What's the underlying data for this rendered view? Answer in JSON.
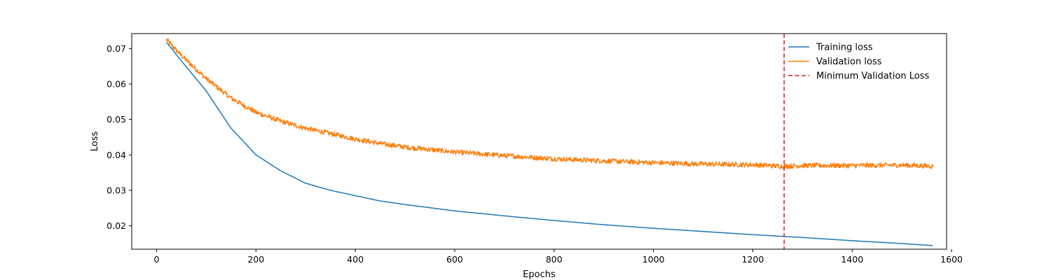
{
  "chart_data": {
    "type": "line",
    "title": "",
    "xlabel": "Epochs",
    "ylabel": "Loss",
    "xlim": [
      -50,
      1590
    ],
    "ylim": [
      0.0134,
      0.0742
    ],
    "x_ticks": [
      0,
      200,
      400,
      600,
      800,
      1000,
      1200,
      1400,
      1600
    ],
    "y_ticks": [
      0.02,
      0.03,
      0.04,
      0.05,
      0.06,
      0.07
    ],
    "grid": false,
    "legend_position": "top-right",
    "series": [
      {
        "name": "Training loss",
        "color": "#1f77b4",
        "style": "solid",
        "x": [
          20,
          50,
          100,
          150,
          200,
          250,
          300,
          350,
          400,
          450,
          500,
          600,
          700,
          800,
          900,
          1000,
          1100,
          1200,
          1263,
          1300,
          1400,
          1500,
          1563
        ],
        "y": [
          0.0718,
          0.0665,
          0.058,
          0.0475,
          0.04,
          0.0355,
          0.032,
          0.03,
          0.0285,
          0.027,
          0.026,
          0.0242,
          0.0228,
          0.0215,
          0.0203,
          0.0193,
          0.0184,
          0.0175,
          0.017,
          0.0167,
          0.0158,
          0.015,
          0.0144
        ]
      },
      {
        "name": "Validation loss",
        "color": "#ff7f0e",
        "style": "solid",
        "noise": 0.0007,
        "x": [
          20,
          50,
          100,
          150,
          200,
          250,
          300,
          350,
          400,
          450,
          500,
          600,
          700,
          800,
          900,
          1000,
          1100,
          1200,
          1263,
          1300,
          1400,
          1500,
          1563
        ],
        "y": [
          0.0725,
          0.068,
          0.0615,
          0.056,
          0.052,
          0.0495,
          0.0475,
          0.046,
          0.0445,
          0.0432,
          0.0422,
          0.0408,
          0.0398,
          0.0389,
          0.0383,
          0.0378,
          0.0374,
          0.0372,
          0.0368,
          0.037,
          0.037,
          0.0371,
          0.0368
        ]
      }
    ],
    "vlines": [
      {
        "name": "Minimum Validation Loss",
        "x": 1263,
        "color": "#d62728",
        "style": "dashed"
      }
    ]
  }
}
